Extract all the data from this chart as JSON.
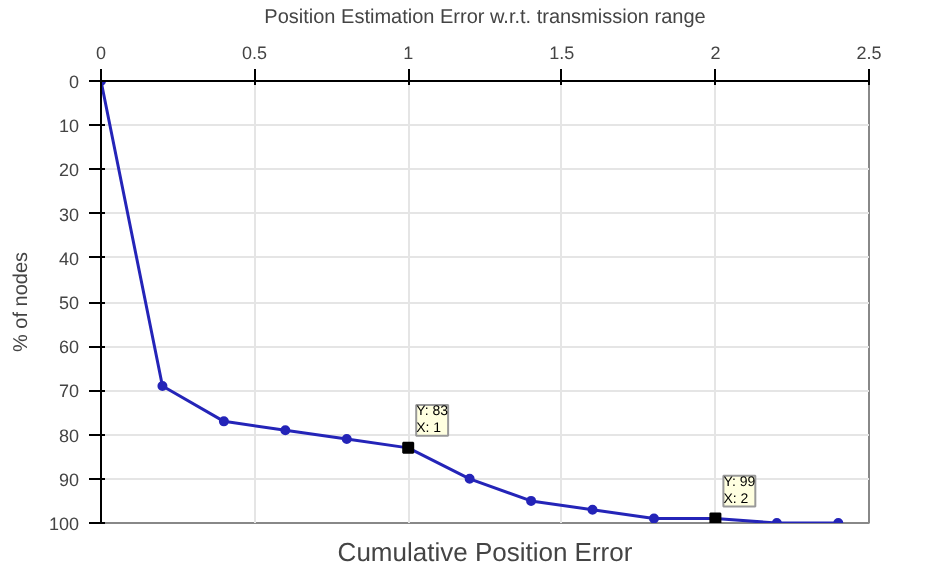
{
  "chart_data": {
    "type": "line",
    "title": "Cumulative Position Error",
    "xlabel": "Position Estimation Error w.r.t. transmission range",
    "ylabel": "% of nodes",
    "x": [
      0,
      0.2,
      0.4,
      0.6,
      0.8,
      1.0,
      1.2,
      1.4,
      1.6,
      1.8,
      2.0,
      2.2,
      2.4
    ],
    "series": [
      {
        "color": "#2424b8",
        "values": [
          0,
          69,
          77,
          79,
          81,
          83,
          90,
          95,
          97,
          99,
          99,
          100,
          100
        ]
      }
    ],
    "xlim": [
      0,
      2.5
    ],
    "xticks": [
      0,
      0.5,
      1,
      1.5,
      2,
      2.5
    ],
    "ylim": [
      100,
      0
    ],
    "yticks": [
      0,
      10,
      20,
      30,
      40,
      50,
      60,
      70,
      80,
      90,
      100
    ],
    "annotations": [
      {
        "text": "Y: 83\nX: 1",
        "x": 1,
        "y": 83
      },
      {
        "text": "Y: 99\nX: 2",
        "x": 2,
        "y": 99
      }
    ],
    "grid": true,
    "marker": "circle",
    "line_style": "solid"
  }
}
